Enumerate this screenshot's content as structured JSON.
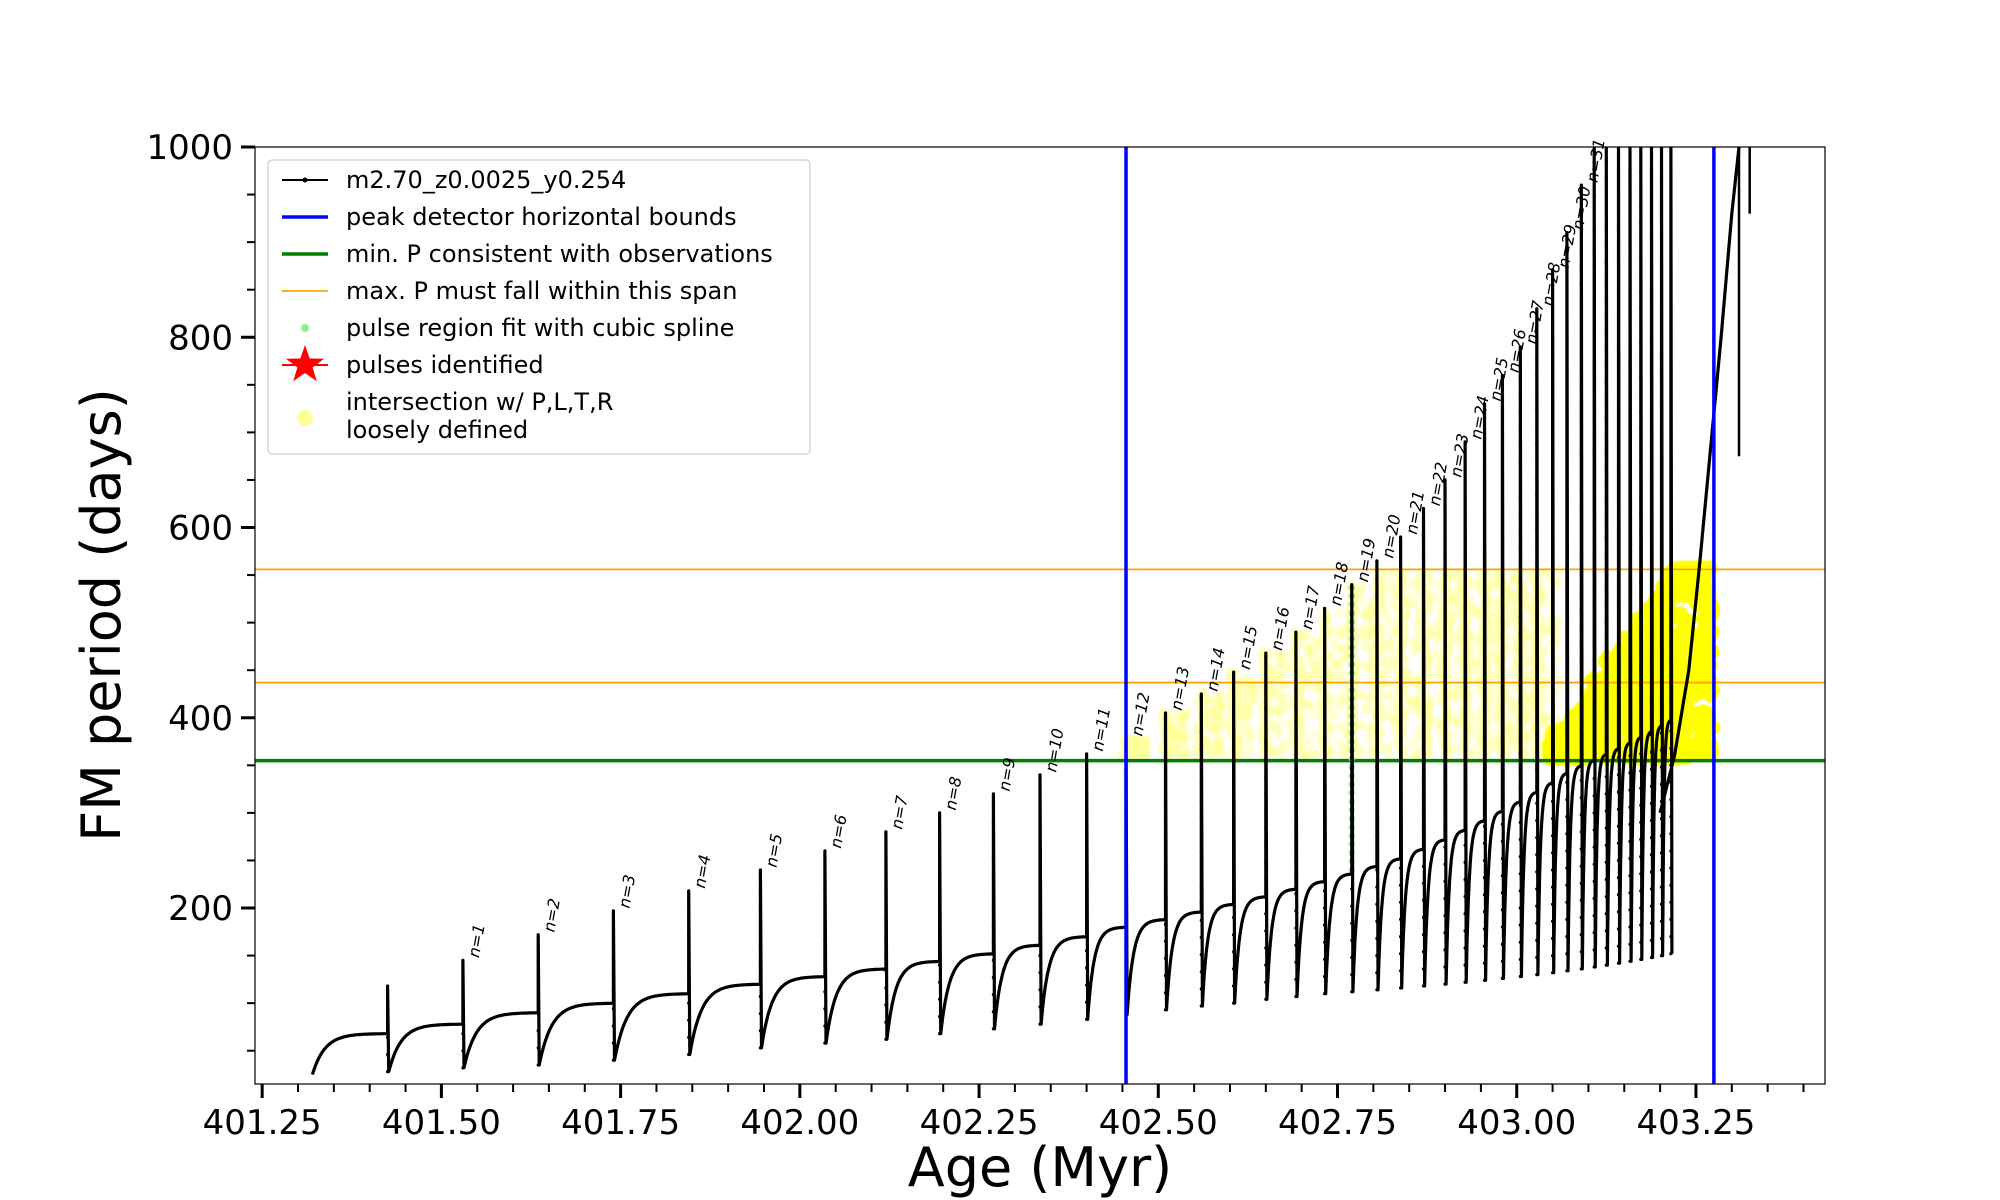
{
  "chart_data": {
    "type": "line",
    "title": "",
    "xlabel": "Age (Myr)",
    "ylabel": "FM period (days)",
    "xlim": [
      401.24,
      403.43
    ],
    "ylim": [
      15,
      1000
    ],
    "x_ticks": [
      "401.25",
      "401.50",
      "401.75",
      "402.00",
      "402.25",
      "402.50",
      "402.75",
      "403.00",
      "403.25"
    ],
    "y_ticks": [
      "200",
      "400",
      "600",
      "800",
      "1000"
    ],
    "grid": false,
    "legend_position": "top-left",
    "legend": [
      {
        "label": "m2.70_z0.0025_y0.254",
        "kind": "line-dot",
        "color": "#000000"
      },
      {
        "label": "peak detector horizontal bounds",
        "kind": "line",
        "color": "#0000ff"
      },
      {
        "label": "min. P consistent with observations",
        "kind": "line",
        "color": "#008000"
      },
      {
        "label": "max. P must fall within this span",
        "kind": "line",
        "color": "#ffa500"
      },
      {
        "label": "pulse region fit with cubic spline",
        "kind": "dot",
        "color": "#90ee90"
      },
      {
        "label": "pulses identified",
        "kind": "star",
        "color": "#ff0000"
      },
      {
        "label": "intersection w/ P,L,T,R",
        "label2": "loosely defined",
        "kind": "dot-big",
        "color": "#ffff99"
      }
    ],
    "vertical_lines": {
      "x": [
        402.455,
        403.275
      ],
      "color": "#0000ff"
    },
    "min_period_line": {
      "y": 355,
      "color": "#008000"
    },
    "max_period_span": {
      "y": [
        437,
        556
      ],
      "color": "#ffa500"
    },
    "pulse_labels": [
      "n=1",
      "n=2",
      "n=3",
      "n=4",
      "n=5",
      "n=6",
      "n=7",
      "n=8",
      "n=9",
      "n=10",
      "n=11",
      "n=12",
      "n=13",
      "n=14",
      "n=15",
      "n=16",
      "n=17",
      "n=18",
      "n=19",
      "n=20",
      "n=21",
      "n=22",
      "n=23",
      "n=24",
      "n=25",
      "n=26",
      "n=27",
      "n=28",
      "n=29",
      "n=30",
      "n=31"
    ],
    "series": [
      {
        "name": "m2.70_z0.0025_y0.254",
        "color": "#000000",
        "start": {
          "x": 401.32,
          "y": 25
        },
        "pulses": [
          {
            "x": 401.425,
            "base": 68,
            "peak": 118,
            "min": 28
          },
          {
            "x": 401.53,
            "base": 78,
            "peak": 145,
            "min": 32
          },
          {
            "x": 401.635,
            "base": 90,
            "peak": 172,
            "min": 35
          },
          {
            "x": 401.74,
            "base": 100,
            "peak": 197,
            "min": 40
          },
          {
            "x": 401.845,
            "base": 110,
            "peak": 218,
            "min": 46
          },
          {
            "x": 401.945,
            "base": 120,
            "peak": 240,
            "min": 53
          },
          {
            "x": 402.035,
            "base": 128,
            "peak": 260,
            "min": 58
          },
          {
            "x": 402.12,
            "base": 136,
            "peak": 280,
            "min": 62
          },
          {
            "x": 402.195,
            "base": 144,
            "peak": 300,
            "min": 68
          },
          {
            "x": 402.27,
            "base": 152,
            "peak": 320,
            "min": 73
          },
          {
            "x": 402.335,
            "base": 161,
            "peak": 340,
            "min": 78
          },
          {
            "x": 402.4,
            "base": 170,
            "peak": 362,
            "min": 83
          },
          {
            "x": 402.455,
            "base": 180,
            "peak": 378,
            "min": 88
          },
          {
            "x": 402.51,
            "base": 188,
            "peak": 405,
            "min": 93
          },
          {
            "x": 402.56,
            "base": 196,
            "peak": 425,
            "min": 97
          },
          {
            "x": 402.605,
            "base": 204,
            "peak": 448,
            "min": 100
          },
          {
            "x": 402.65,
            "base": 212,
            "peak": 468,
            "min": 104
          },
          {
            "x": 402.692,
            "base": 220,
            "peak": 490,
            "min": 107
          },
          {
            "x": 402.732,
            "base": 228,
            "peak": 515,
            "min": 110
          },
          {
            "x": 402.77,
            "base": 236,
            "peak": 540,
            "min": 112
          },
          {
            "x": 402.805,
            "base": 244,
            "peak": 565,
            "min": 114
          },
          {
            "x": 402.838,
            "base": 252,
            "peak": 590,
            "min": 116
          },
          {
            "x": 402.87,
            "base": 262,
            "peak": 620,
            "min": 118
          },
          {
            "x": 402.9,
            "base": 272,
            "peak": 650,
            "min": 120
          },
          {
            "x": 402.928,
            "base": 282,
            "peak": 690,
            "min": 122
          },
          {
            "x": 402.955,
            "base": 292,
            "peak": 730,
            "min": 124
          },
          {
            "x": 402.98,
            "base": 302,
            "peak": 760,
            "min": 126
          },
          {
            "x": 403.005,
            "base": 312,
            "peak": 790,
            "min": 128
          },
          {
            "x": 403.028,
            "base": 322,
            "peak": 830,
            "min": 130
          },
          {
            "x": 403.05,
            "base": 332,
            "peak": 870,
            "min": 132
          },
          {
            "x": 403.07,
            "base": 342,
            "peak": 910,
            "min": 134
          },
          {
            "x": 403.09,
            "base": 350,
            "peak": 960,
            "min": 136
          },
          {
            "x": 403.108,
            "base": 356,
            "peak": 1000,
            "min": 138
          },
          {
            "x": 403.125,
            "base": 362,
            "peak": 1000,
            "min": 140
          },
          {
            "x": 403.142,
            "base": 368,
            "peak": 1000,
            "min": 142
          },
          {
            "x": 403.158,
            "base": 374,
            "peak": 1000,
            "min": 144
          },
          {
            "x": 403.173,
            "base": 380,
            "peak": 1000,
            "min": 146
          },
          {
            "x": 403.188,
            "base": 386,
            "peak": 1000,
            "min": 148
          },
          {
            "x": 403.202,
            "base": 392,
            "peak": 1000,
            "min": 150
          },
          {
            "x": 403.215,
            "base": 398,
            "peak": 1000,
            "min": 152
          }
        ],
        "late_branch": [
          [
            403.2,
            300
          ],
          [
            403.22,
            360
          ],
          [
            403.24,
            450
          ],
          [
            403.255,
            560
          ],
          [
            403.27,
            680
          ],
          [
            403.285,
            800
          ],
          [
            403.3,
            930
          ],
          [
            403.31,
            1000
          ]
        ]
      },
      {
        "name": "intersection w/ P,L,T,R",
        "color": "#ffff00",
        "region": {
          "x": [
            403.045,
            403.275
          ],
          "y": [
            355,
            556
          ]
        }
      }
    ]
  }
}
